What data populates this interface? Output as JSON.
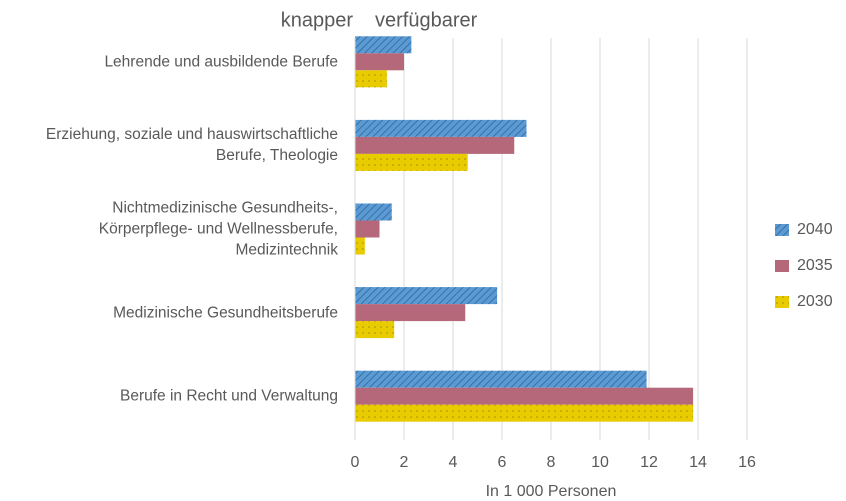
{
  "chart_data": {
    "type": "bar",
    "orientation": "horizontal",
    "annotations": [
      "knapper",
      "verfügbarer"
    ],
    "xlabel": "In 1 000 Personen",
    "categories": [
      "Lehrende und ausbildende Berufe",
      "Erziehung, soziale und hauswirtschaftliche\nBerufe, Theologie",
      "Nichtmedizinische Gesundheits-,\nKörperpflege- und Wellnessberufe,\nMedizintechnik",
      "Medizinische Gesundheitsberufe",
      "Berufe in Recht und Verwaltung"
    ],
    "series": [
      {
        "name": "2040",
        "color": "#5b9bd5",
        "values": [
          2.3,
          7.0,
          1.5,
          5.8,
          11.9
        ]
      },
      {
        "name": "2035",
        "color": "#b6687b",
        "values": [
          2.0,
          6.5,
          1.0,
          4.5,
          13.8
        ]
      },
      {
        "name": "2030",
        "color": "#e8cc00",
        "values": [
          1.3,
          4.6,
          0.4,
          1.6,
          13.8
        ]
      }
    ],
    "xlim": [
      0,
      16
    ],
    "xticks": [
      0,
      2,
      4,
      6,
      8,
      10,
      12,
      14,
      16
    ],
    "grid": true,
    "legend": "right"
  }
}
